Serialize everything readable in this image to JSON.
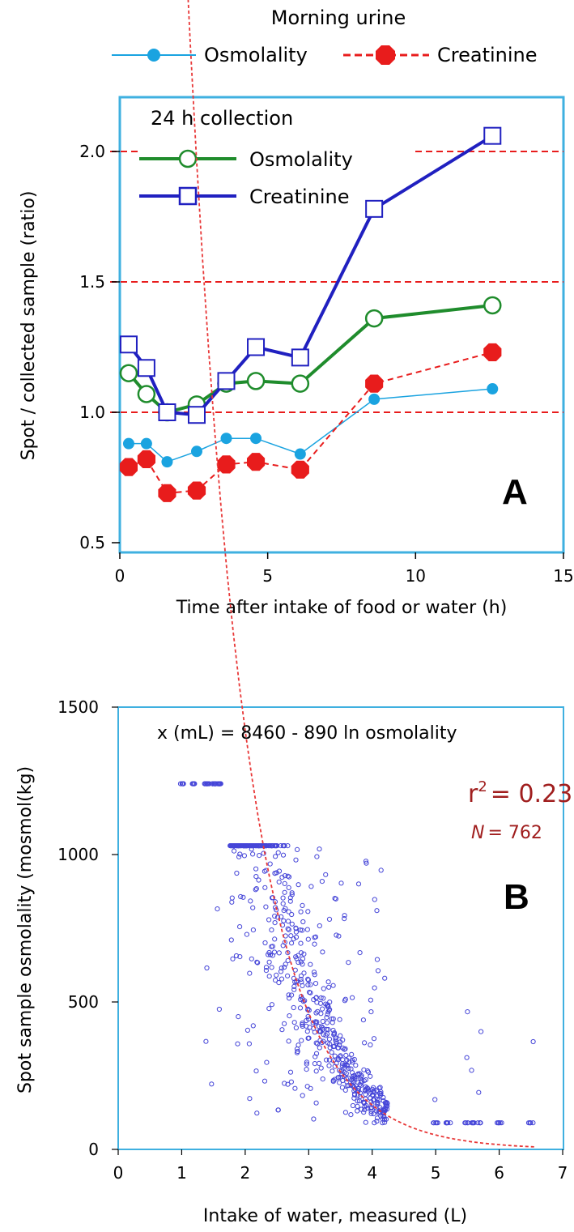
{
  "colors": {
    "frame": "#3fb0e0",
    "osm_morning": "#1aa3e0",
    "creat_morning": "#e81c1c",
    "osm_24h": "#1f8c2c",
    "creat_24h": "#2020c0",
    "ref_line": "#e81c1c",
    "scatter": "#4646d8",
    "fit": "#e83838",
    "r2": "#a01e1e"
  },
  "chart_data": [
    {
      "panel": "A",
      "type": "line",
      "xlabel": "Time after intake of food or water (h)",
      "ylabel": "Spot / collected sample (ratio)",
      "xlim": [
        0,
        15
      ],
      "ylim": [
        0.5,
        2.2
      ],
      "xticks": [
        0,
        5,
        10,
        15
      ],
      "yticks": [
        0.5,
        1.0,
        1.5,
        2.0
      ],
      "ytick_labels": [
        "0.5",
        "1.0",
        "1.5",
        "2.0"
      ],
      "reference_lines": [
        1.0,
        1.5,
        2.0
      ],
      "legend_top_title": "Morning urine",
      "legend_inner_title": "24 h collection",
      "series": [
        {
          "name": "Osmolality",
          "group": "Morning urine",
          "marker": "filled-circle",
          "style": "solid",
          "x": [
            0.3,
            0.9,
            1.6,
            2.6,
            3.6,
            4.6,
            6.1,
            8.6,
            12.6
          ],
          "y": [
            0.88,
            0.88,
            0.81,
            0.85,
            0.9,
            0.9,
            0.84,
            1.05,
            1.09
          ]
        },
        {
          "name": "Creatinine",
          "group": "Morning urine",
          "marker": "filled-octagon",
          "style": "dashed",
          "x": [
            0.3,
            0.9,
            1.6,
            2.6,
            3.6,
            4.6,
            6.1,
            8.6,
            12.6
          ],
          "y": [
            0.79,
            0.82,
            0.69,
            0.7,
            0.8,
            0.81,
            0.78,
            1.11,
            1.23
          ]
        },
        {
          "name": "Osmolality",
          "group": "24 h collection",
          "marker": "open-circle",
          "style": "solid",
          "x": [
            0.3,
            0.9,
            1.6,
            2.6,
            3.6,
            4.6,
            6.1,
            8.6,
            12.6
          ],
          "y": [
            1.15,
            1.07,
            1.0,
            1.03,
            1.11,
            1.12,
            1.11,
            1.36,
            1.41
          ]
        },
        {
          "name": "Creatinine",
          "group": "24 h collection",
          "marker": "open-square",
          "style": "solid",
          "x": [
            0.3,
            0.9,
            1.6,
            2.6,
            3.6,
            4.6,
            6.1,
            8.6,
            12.6
          ],
          "y": [
            1.26,
            1.17,
            1.0,
            0.99,
            1.12,
            1.25,
            1.21,
            1.78,
            2.06
          ]
        }
      ]
    },
    {
      "panel": "B",
      "type": "scatter",
      "xlabel": "Intake of water, measured (L)",
      "ylabel": "Spot sample osmolality (mosmol(kg)",
      "xlim": [
        0,
        7
      ],
      "ylim": [
        0,
        1500
      ],
      "xticks": [
        0,
        1,
        2,
        3,
        4,
        5,
        6,
        7
      ],
      "yticks": [
        0,
        500,
        1000,
        1500
      ],
      "equation": "x (mL) = 8460 - 890 ln osmolality",
      "r2_prefix": "r",
      "r2_sup": "2",
      "r2_value": "= 0.23",
      "n_prefix": "N",
      "n_value": "= 762",
      "n_points": 762,
      "fit": {
        "a": 8460,
        "b": 890,
        "x_range": [
          0.75,
          6.55
        ]
      },
      "point_columns": [
        1.0,
        1.2,
        1.4,
        1.5,
        1.6,
        1.8,
        1.9,
        2.0,
        2.1,
        2.2,
        2.3,
        2.4,
        2.5,
        2.6,
        2.7,
        2.8,
        2.9,
        3.0,
        3.1,
        3.2,
        3.3,
        3.4,
        3.5,
        3.6,
        3.7,
        3.8,
        3.9,
        4.0,
        4.1,
        4.2,
        5.0,
        5.2,
        5.5,
        5.6,
        5.7,
        6.0,
        6.5
      ]
    }
  ]
}
